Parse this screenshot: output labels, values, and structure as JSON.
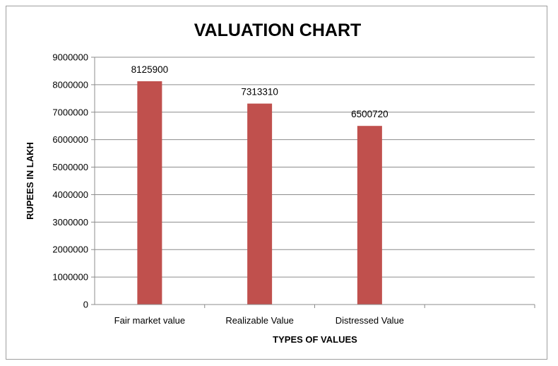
{
  "chart_data": {
    "type": "bar",
    "title": "VALUATION CHART",
    "xlabel": "TYPES OF VALUES",
    "ylabel": "RUPEES IN LAKH",
    "categories": [
      "Fair market value",
      "Realizable Value",
      "Distressed Value",
      ""
    ],
    "values": [
      8125900,
      7313310,
      6500720,
      null
    ],
    "data_labels": [
      "8125900",
      "7313310",
      "6500720",
      ""
    ],
    "ylim": [
      0,
      9000000
    ],
    "yticks": [
      0,
      1000000,
      2000000,
      3000000,
      4000000,
      5000000,
      6000000,
      7000000,
      8000000,
      9000000
    ],
    "ytick_labels": [
      "0",
      "1000000",
      "2000000",
      "3000000",
      "4000000",
      "5000000",
      "6000000",
      "7000000",
      "8000000",
      "9000000"
    ],
    "grid": true,
    "legend": "none",
    "bar_color": "#c0504d"
  }
}
